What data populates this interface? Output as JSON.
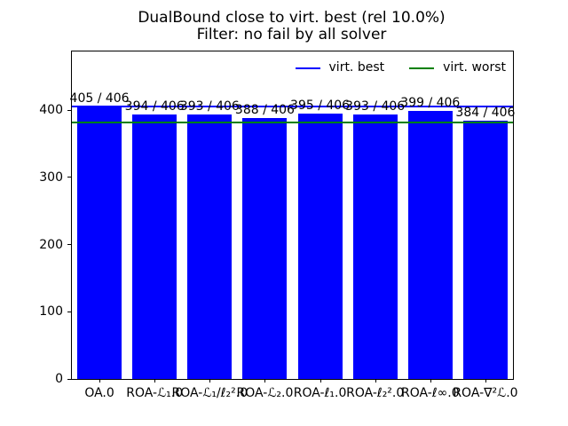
{
  "chart_data": {
    "type": "bar",
    "title": "DualBound close to virt. best (rel 10.0%)",
    "subtitle": "Filter: no fail by all solver",
    "categories": [
      "OA.0",
      "ROA-ℒ₁.0",
      "ROA-ℒ₁/ℓ₂².0",
      "ROA-ℒ₂.0",
      "ROA-ℓ₁.0",
      "ROA-ℓ₂².0",
      "ROA-ℓ∞.0",
      "ROA-∇²ℒ.0"
    ],
    "values": [
      405,
      394,
      393,
      388,
      395,
      393,
      399,
      384
    ],
    "total": 406,
    "bar_labels": [
      "405 / 406",
      "394 / 406",
      "393 / 406",
      "388 / 406",
      "395 / 406",
      "393 / 406",
      "399 / 406",
      "384 / 406"
    ],
    "bar_color": "#0000ff",
    "reference_lines": [
      {
        "label": "virt. best",
        "value": 406,
        "color": "#0000ff"
      },
      {
        "label": "virt. worst",
        "value": 381,
        "color": "#008000"
      }
    ],
    "yticks": [
      0,
      100,
      200,
      300,
      400
    ],
    "ylim": [
      0,
      487.2
    ],
    "xlabel": "",
    "ylabel": "",
    "grid": false,
    "legend_position": "upper right inside, no frame"
  }
}
